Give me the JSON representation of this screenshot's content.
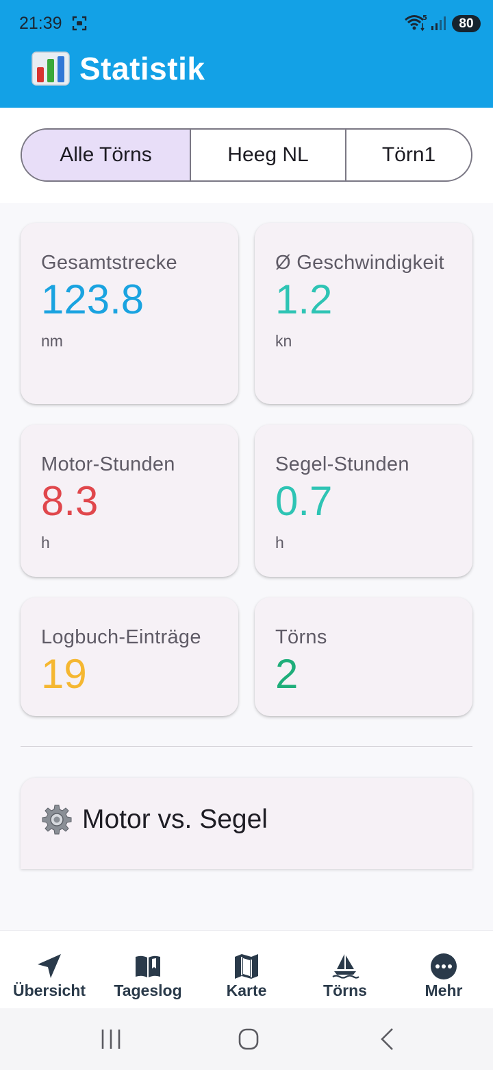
{
  "status_bar": {
    "time": "21:39",
    "battery": "80",
    "icons": [
      "screenshot-icon",
      "wifi-icon",
      "signal-icon"
    ]
  },
  "header": {
    "title": "Statistik",
    "icon": "bar-chart-icon",
    "color": "#13a1e6"
  },
  "filter_tabs": [
    {
      "label": "Alle Törns",
      "active": true
    },
    {
      "label": "Heeg NL",
      "active": false
    },
    {
      "label": "Törn1",
      "active": false
    }
  ],
  "stats": [
    {
      "label": "Gesamtstrecke",
      "value": "123.8",
      "unit": "nm",
      "color": "#1aa3e0"
    },
    {
      "label": "Ø Geschwindigkeit",
      "value": "1.2",
      "unit": "kn",
      "color": "#2ec4b4"
    },
    {
      "label": "Motor-Stunden",
      "value": "8.3",
      "unit": "h",
      "color": "#e0474c"
    },
    {
      "label": "Segel-Stunden",
      "value": "0.7",
      "unit": "h",
      "color": "#2ec4b4"
    },
    {
      "label": "Logbuch-Einträge",
      "value": "19",
      "unit": "",
      "color": "#f5b731"
    },
    {
      "label": "Törns",
      "value": "2",
      "unit": "",
      "color": "#1fae7a"
    }
  ],
  "section": {
    "title": "Motor vs. Segel",
    "icon": "gear-icon"
  },
  "bottom_nav": [
    {
      "label": "Übersicht",
      "icon": "navigation-arrow-icon"
    },
    {
      "label": "Tageslog",
      "icon": "open-book-icon"
    },
    {
      "label": "Karte",
      "icon": "map-icon"
    },
    {
      "label": "Törns",
      "icon": "sailboat-icon"
    },
    {
      "label": "Mehr",
      "icon": "more-dots-icon"
    }
  ],
  "system_nav": [
    "recent-apps-icon",
    "home-icon",
    "back-icon"
  ]
}
